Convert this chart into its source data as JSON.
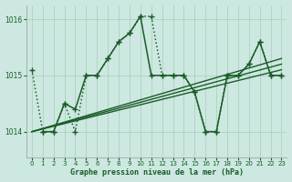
{
  "title": "Graphe pression niveau de la mer (hPa)",
  "bg_color": "#cce8e0",
  "plot_bg_color": "#cce8e0",
  "grid_color": "#aaccbb",
  "line_color": "#1a5c28",
  "xlim": [
    -0.5,
    23.5
  ],
  "ylim": [
    1013.55,
    1016.25
  ],
  "yticks": [
    1014,
    1015,
    1016
  ],
  "xticks": [
    0,
    1,
    2,
    3,
    4,
    5,
    6,
    7,
    8,
    9,
    10,
    11,
    12,
    13,
    14,
    15,
    16,
    17,
    18,
    19,
    20,
    21,
    22,
    23
  ],
  "series": [
    {
      "x": [
        0,
        1,
        2,
        3,
        4,
        5,
        6,
        7,
        8,
        9,
        10,
        11,
        12,
        13,
        14,
        15,
        16,
        17,
        18,
        19,
        20,
        21,
        22,
        23
      ],
      "y": [
        1015.1,
        1014.0,
        1014.0,
        1014.5,
        1014.0,
        1015.0,
        1015.0,
        1015.3,
        1015.6,
        1015.75,
        1016.05,
        1016.05,
        1015.0,
        1015.0,
        1015.0,
        1014.7,
        1014.0,
        1014.0,
        1015.0,
        1015.0,
        1015.2,
        1015.6,
        1015.0,
        1015.0
      ],
      "style": ":",
      "marker": "+",
      "lw": 1.1
    },
    {
      "x": [
        0,
        23
      ],
      "y": [
        1014.0,
        1015.1
      ],
      "style": "-",
      "marker": null,
      "lw": 1.0
    },
    {
      "x": [
        0,
        23
      ],
      "y": [
        1014.0,
        1015.2
      ],
      "style": "-",
      "marker": null,
      "lw": 1.0
    },
    {
      "x": [
        0,
        23
      ],
      "y": [
        1014.0,
        1015.3
      ],
      "style": "-",
      "marker": null,
      "lw": 1.0
    },
    {
      "x": [
        1,
        2,
        3,
        4,
        5,
        6,
        7,
        8,
        9,
        10,
        11,
        12,
        13,
        14,
        15,
        16,
        17,
        18,
        19,
        20,
        21,
        22,
        23
      ],
      "y": [
        1014.0,
        1014.0,
        1014.5,
        1014.4,
        1015.0,
        1015.0,
        1015.3,
        1015.6,
        1015.75,
        1016.05,
        1015.0,
        1015.0,
        1015.0,
        1015.0,
        1014.7,
        1014.0,
        1014.0,
        1015.0,
        1015.0,
        1015.2,
        1015.6,
        1015.0,
        1015.0
      ],
      "style": "-",
      "marker": "+",
      "lw": 1.1
    }
  ]
}
